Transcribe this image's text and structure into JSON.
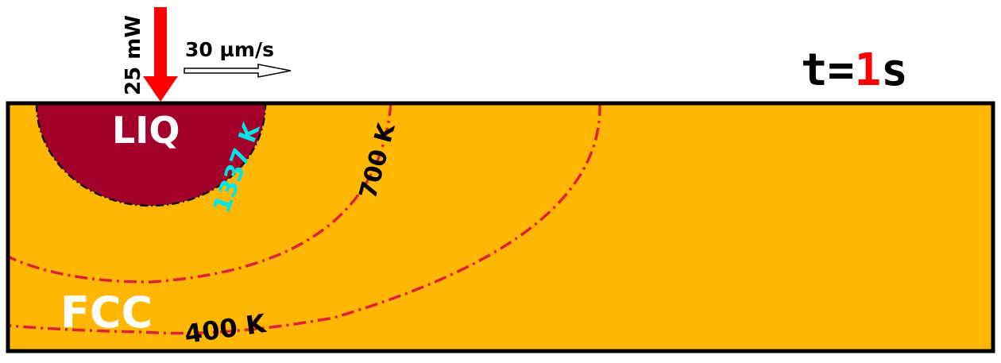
{
  "laser": {
    "power_label": "25 mW",
    "speed_label": "30 µm/s"
  },
  "time": {
    "prefix": "t=",
    "value": "1",
    "suffix": "s"
  },
  "phases": {
    "liquid": "LIQ",
    "solid": "FCC"
  },
  "isotherms": [
    {
      "label": "1337 K",
      "color": "#00e5e5"
    },
    {
      "label": "700 K",
      "color": "#000000"
    },
    {
      "label": "400 K",
      "color": "#000000"
    }
  ],
  "colors": {
    "substrate": "#ffb703",
    "melt_pool": "#a3002a",
    "isotherm_line": "#e0203a",
    "laser_arrow": "#ff0000",
    "time_value": "#ff0000",
    "border": "#000000"
  }
}
